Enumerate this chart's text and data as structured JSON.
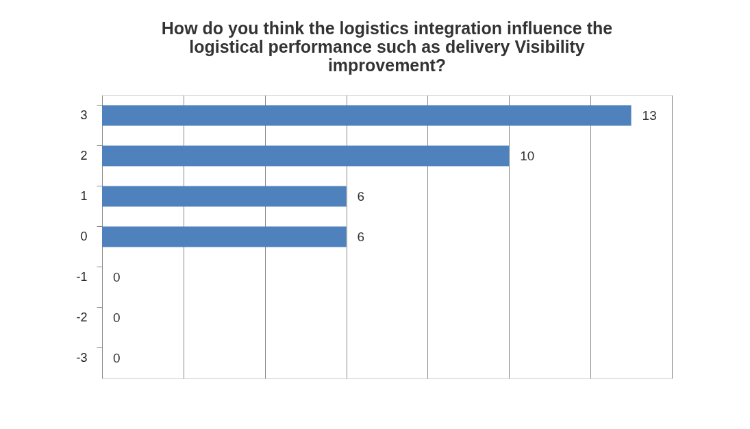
{
  "chart_data": {
    "type": "bar",
    "orientation": "horizontal",
    "title": "How do you think the logistics integration influence the logistical performance such as delivery Visibility improvement?",
    "categories": [
      "3",
      "2",
      "1",
      "0",
      "-1",
      "-2",
      "-3"
    ],
    "values": [
      13,
      10,
      6,
      6,
      0,
      0,
      0
    ],
    "color": "#4f81bd",
    "xlim": [
      0,
      14
    ],
    "xticks": [
      {
        "value": 0,
        "label": null
      },
      {
        "value": 2,
        "label": null
      },
      {
        "value": 4,
        "label": null
      },
      {
        "value": 6,
        "label": null
      },
      {
        "value": 8,
        "label": null
      },
      {
        "value": 10,
        "label": null
      },
      {
        "value": 12,
        "label": null
      },
      {
        "value": 14,
        "label": null
      }
    ],
    "tick_labels": "y",
    "grid": "x",
    "data_labels": true
  }
}
